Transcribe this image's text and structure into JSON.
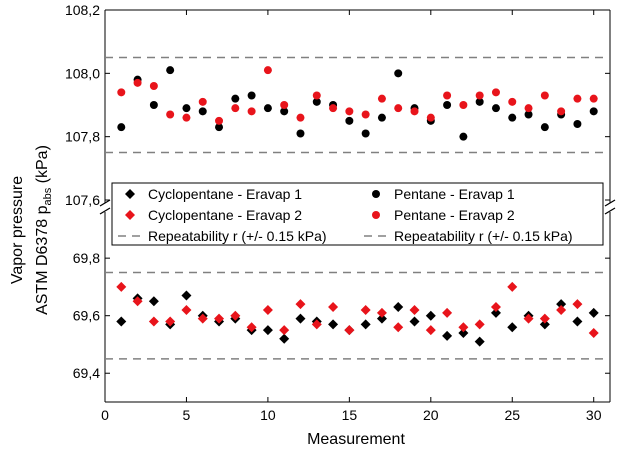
{
  "chart_data": {
    "type": "scatter",
    "title": "",
    "xlabel": "Measurement",
    "ylabel_line1": "Vapor pressure",
    "ylabel_line2_main": "ASTM D6378 p",
    "ylabel_line2_sub": "abs",
    "ylabel_line2_unit": "(kPa)",
    "x_range": [
      0,
      31
    ],
    "x_ticks": [
      0,
      5,
      10,
      15,
      20,
      25,
      30
    ],
    "x_tick_labels": [
      "0",
      "5",
      "10",
      "15",
      "20",
      "25",
      "30"
    ],
    "axis_break": true,
    "y_upper_range": [
      107.6,
      108.2
    ],
    "y_upper_ticks": [
      107.6,
      107.8,
      108.0,
      108.2
    ],
    "y_upper_tick_labels": [
      "107,6",
      "107,8",
      "108,0",
      "108,2"
    ],
    "y_lower_range": [
      69.3,
      69.95
    ],
    "y_lower_ticks": [
      69.4,
      69.6,
      69.8
    ],
    "y_lower_tick_labels": [
      "69,4",
      "69,6",
      "69,8"
    ],
    "grid": false,
    "colors": {
      "black": "#000000",
      "red": "#e8141b",
      "dash": "#808080"
    },
    "repeatability": {
      "upper_lines": [
        107.75,
        108.05
      ],
      "lower_lines": [
        69.45,
        69.75
      ]
    },
    "series": [
      {
        "name": "Cyclopentane - Eravap 1",
        "marker": "diamond",
        "color": "#000000",
        "x": [
          1,
          2,
          3,
          4,
          5,
          6,
          7,
          8,
          9,
          10,
          11,
          12,
          13,
          14,
          15,
          16,
          17,
          18,
          19,
          20,
          21,
          22,
          23,
          24,
          25,
          26,
          27,
          28,
          29,
          30
        ],
        "values": [
          69.58,
          69.66,
          69.65,
          69.57,
          69.67,
          69.6,
          69.58,
          69.59,
          69.55,
          69.55,
          69.52,
          69.59,
          69.58,
          69.57,
          69.55,
          69.57,
          69.59,
          69.63,
          69.58,
          69.6,
          69.53,
          69.54,
          69.51,
          69.61,
          69.56,
          69.6,
          69.57,
          69.64,
          69.58,
          69.61
        ]
      },
      {
        "name": "Cyclopentane - Eravap 2",
        "marker": "diamond",
        "color": "#e8141b",
        "x": [
          1,
          2,
          3,
          4,
          5,
          6,
          7,
          8,
          9,
          10,
          11,
          12,
          13,
          14,
          15,
          16,
          17,
          18,
          19,
          20,
          21,
          22,
          23,
          24,
          25,
          26,
          27,
          28,
          29,
          30
        ],
        "values": [
          69.7,
          69.65,
          69.58,
          69.58,
          69.62,
          69.59,
          69.59,
          69.6,
          69.56,
          69.62,
          69.55,
          69.64,
          69.57,
          69.63,
          69.55,
          69.62,
          69.61,
          69.56,
          69.62,
          69.55,
          69.61,
          69.56,
          69.57,
          69.63,
          69.7,
          69.59,
          69.59,
          69.62,
          69.64,
          69.54
        ]
      },
      {
        "name": "Pentane - Eravap 1",
        "marker": "circle",
        "color": "#000000",
        "x": [
          1,
          2,
          3,
          4,
          5,
          6,
          7,
          8,
          9,
          10,
          11,
          12,
          13,
          14,
          15,
          16,
          17,
          18,
          19,
          20,
          21,
          22,
          23,
          24,
          25,
          26,
          27,
          28,
          29,
          30
        ],
        "values": [
          107.83,
          107.98,
          107.9,
          108.01,
          107.89,
          107.88,
          107.83,
          107.92,
          107.93,
          107.89,
          107.88,
          107.81,
          107.91,
          107.9,
          107.85,
          107.81,
          107.86,
          108.0,
          107.89,
          107.85,
          107.9,
          107.8,
          107.91,
          107.89,
          107.86,
          107.87,
          107.83,
          107.87,
          107.84,
          107.88
        ]
      },
      {
        "name": "Pentane - Eravap 2",
        "marker": "circle",
        "color": "#e8141b",
        "x": [
          1,
          2,
          3,
          4,
          5,
          6,
          7,
          8,
          9,
          10,
          11,
          12,
          13,
          14,
          15,
          16,
          17,
          18,
          19,
          20,
          21,
          22,
          23,
          24,
          25,
          26,
          27,
          28,
          29,
          30
        ],
        "values": [
          107.94,
          107.97,
          107.96,
          107.87,
          107.86,
          107.91,
          107.85,
          107.89,
          107.88,
          108.01,
          107.9,
          107.86,
          107.93,
          107.89,
          107.88,
          107.87,
          107.92,
          107.89,
          107.88,
          107.86,
          107.93,
          107.9,
          107.93,
          107.94,
          107.91,
          107.89,
          107.93,
          107.88,
          107.92,
          107.92
        ]
      }
    ],
    "legend": {
      "placement": "center",
      "items": [
        {
          "label": "Cyclopentane - Eravap 1",
          "marker": "diamond",
          "color": "#000000"
        },
        {
          "label": "Pentane - Eravap 1",
          "marker": "circle",
          "color": "#000000"
        },
        {
          "label": "Cyclopentane - Eravap 2",
          "marker": "diamond",
          "color": "#e8141b"
        },
        {
          "label": "Pentane - Eravap 2",
          "marker": "circle",
          "color": "#e8141b"
        },
        {
          "label": "Repeatability r (+/- 0.15 kPa)",
          "marker": "dash",
          "color": "#808080"
        },
        {
          "label": "Repeatability r (+/- 0.15 kPa)",
          "marker": "dash",
          "color": "#808080"
        }
      ]
    }
  }
}
